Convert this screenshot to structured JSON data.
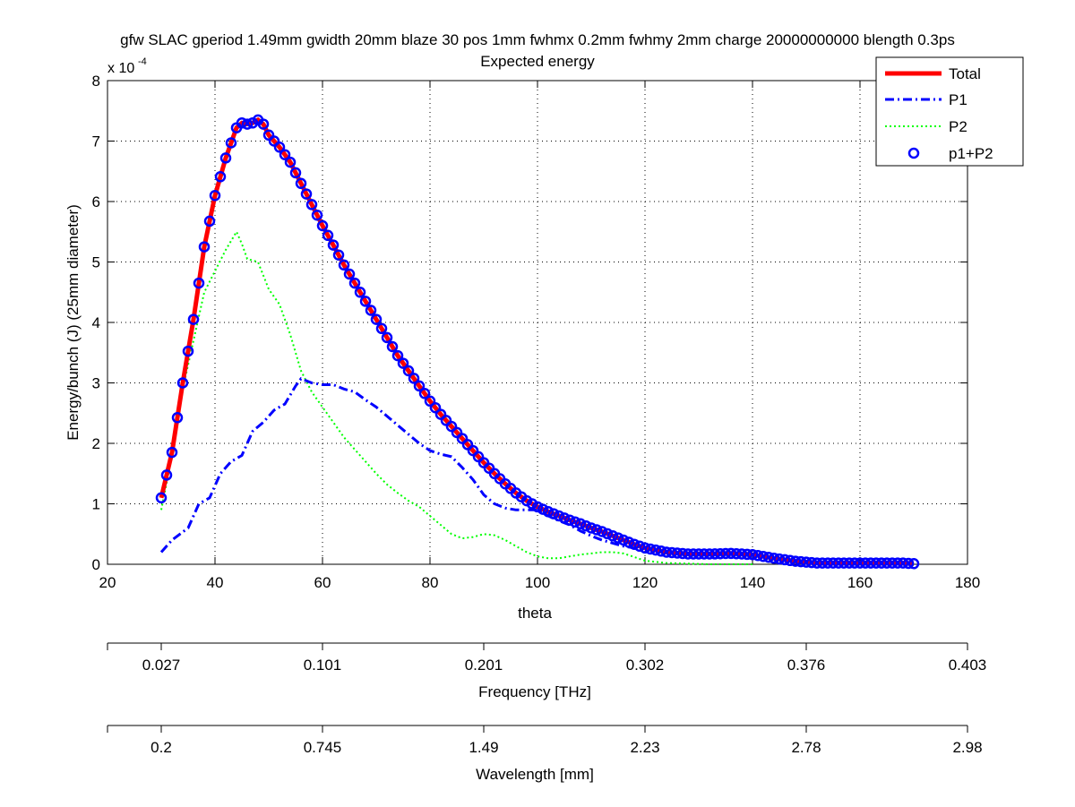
{
  "chart_data": {
    "type": "line",
    "title": "gfw SLAC gperiod 1.49mm gwidth 20mm blaze 30 pos 1mm fwhmx 0.2mm fwhmy 2mm charge 20000000000 blength 0.3ps",
    "subtitle": "Expected energy",
    "xlabel": "theta",
    "ylabel": "Energy/bunch (J) (25mm diameter)",
    "y_multiplier": "x 10",
    "y_multiplier_exp": "-4",
    "xlim": [
      20,
      180
    ],
    "ylim": [
      0,
      8
    ],
    "x_ticks": [
      20,
      40,
      60,
      80,
      100,
      120,
      140,
      160,
      180
    ],
    "y_ticks": [
      0,
      1,
      2,
      3,
      4,
      5,
      6,
      7,
      8
    ],
    "grid": true,
    "legend_position": "top-right",
    "series": [
      {
        "name": "Total",
        "style": "solid",
        "color": "#ff0000",
        "x": [
          30,
          32,
          34,
          36,
          38,
          40,
          42,
          44,
          45,
          46,
          47,
          48,
          49,
          50,
          52,
          54,
          56,
          58,
          60,
          62,
          64,
          66,
          68,
          70,
          72,
          74,
          76,
          78,
          80,
          82,
          84,
          86,
          88,
          90,
          92,
          94,
          96,
          98,
          100,
          102,
          104,
          106,
          108,
          110,
          112,
          114,
          116,
          118,
          120,
          124,
          128,
          132,
          136,
          140,
          144,
          148,
          152,
          156,
          160,
          164,
          168,
          170
        ],
        "y": [
          1.1,
          1.85,
          3.0,
          4.05,
          5.25,
          6.1,
          6.72,
          7.22,
          7.3,
          7.28,
          7.3,
          7.35,
          7.28,
          7.1,
          6.9,
          6.65,
          6.3,
          5.95,
          5.6,
          5.28,
          4.95,
          4.65,
          4.35,
          4.05,
          3.75,
          3.45,
          3.2,
          2.95,
          2.7,
          2.48,
          2.28,
          2.08,
          1.88,
          1.68,
          1.5,
          1.33,
          1.18,
          1.05,
          0.95,
          0.87,
          0.8,
          0.73,
          0.67,
          0.6,
          0.54,
          0.47,
          0.4,
          0.33,
          0.27,
          0.2,
          0.17,
          0.17,
          0.18,
          0.16,
          0.1,
          0.05,
          0.02,
          0.02,
          0.02,
          0.02,
          0.02,
          0.01
        ]
      },
      {
        "name": "P1",
        "style": "dashdot",
        "color": "#0000ff",
        "x": [
          30,
          32,
          35,
          37,
          39,
          41,
          43,
          45,
          47,
          49,
          51,
          53,
          55,
          56,
          58,
          60,
          62,
          64,
          66,
          68,
          70,
          72,
          74,
          76,
          78,
          80,
          82,
          84,
          86,
          88,
          90,
          92,
          94,
          96,
          98,
          100,
          102,
          104,
          106,
          108,
          110,
          112,
          114,
          116,
          118
        ],
        "y": [
          0.2,
          0.4,
          0.6,
          1.0,
          1.1,
          1.5,
          1.7,
          1.8,
          2.2,
          2.35,
          2.55,
          2.65,
          2.95,
          3.07,
          3.0,
          2.97,
          2.97,
          2.9,
          2.85,
          2.72,
          2.6,
          2.45,
          2.3,
          2.15,
          2.0,
          1.88,
          1.82,
          1.78,
          1.6,
          1.4,
          1.15,
          1.0,
          0.93,
          0.9,
          0.9,
          0.9,
          0.8,
          0.72,
          0.65,
          0.55,
          0.47,
          0.4,
          0.35,
          0.3,
          0.27
        ]
      },
      {
        "name": "P2",
        "style": "dotted",
        "color": "#00ff00",
        "x": [
          30,
          32,
          34,
          36,
          38,
          40,
          42,
          44,
          45,
          46,
          48,
          50,
          52,
          54,
          56,
          58,
          60,
          62,
          64,
          66,
          68,
          70,
          72,
          74,
          76,
          78,
          80,
          82,
          84,
          86,
          88,
          90,
          92,
          94,
          96,
          98,
          100,
          102,
          104,
          106,
          108,
          110,
          112,
          114,
          116,
          118,
          120,
          124,
          128,
          132,
          136,
          140
        ],
        "y": [
          0.9,
          1.8,
          2.9,
          3.7,
          4.5,
          4.85,
          5.2,
          5.5,
          5.3,
          5.05,
          5.0,
          4.55,
          4.3,
          3.8,
          3.2,
          2.85,
          2.6,
          2.35,
          2.1,
          1.9,
          1.7,
          1.5,
          1.32,
          1.18,
          1.05,
          0.95,
          0.8,
          0.65,
          0.5,
          0.43,
          0.45,
          0.5,
          0.48,
          0.4,
          0.3,
          0.2,
          0.13,
          0.1,
          0.1,
          0.13,
          0.16,
          0.18,
          0.2,
          0.2,
          0.18,
          0.12,
          0.06,
          0.02,
          0.01,
          0.0,
          0.0,
          0.0
        ]
      },
      {
        "name": "p1+P2",
        "style": "markers",
        "color": "#0000ff",
        "x_start": 30,
        "x_end": 170,
        "x_step": 1
      }
    ],
    "secondary_axes": [
      {
        "label": "Frequency [THz]",
        "tick_positions_theta": [
          30,
          60,
          90,
          120,
          150,
          180
        ],
        "tick_labels": [
          "0.027",
          "0.101",
          "0.201",
          "0.302",
          "0.376",
          "0.403"
        ]
      },
      {
        "label": "Wavelength [mm]",
        "tick_positions_theta": [
          30,
          60,
          90,
          120,
          150,
          180
        ],
        "tick_labels": [
          "0.2",
          "0.745",
          "1.49",
          "2.23",
          "2.78",
          "2.98"
        ]
      }
    ]
  }
}
